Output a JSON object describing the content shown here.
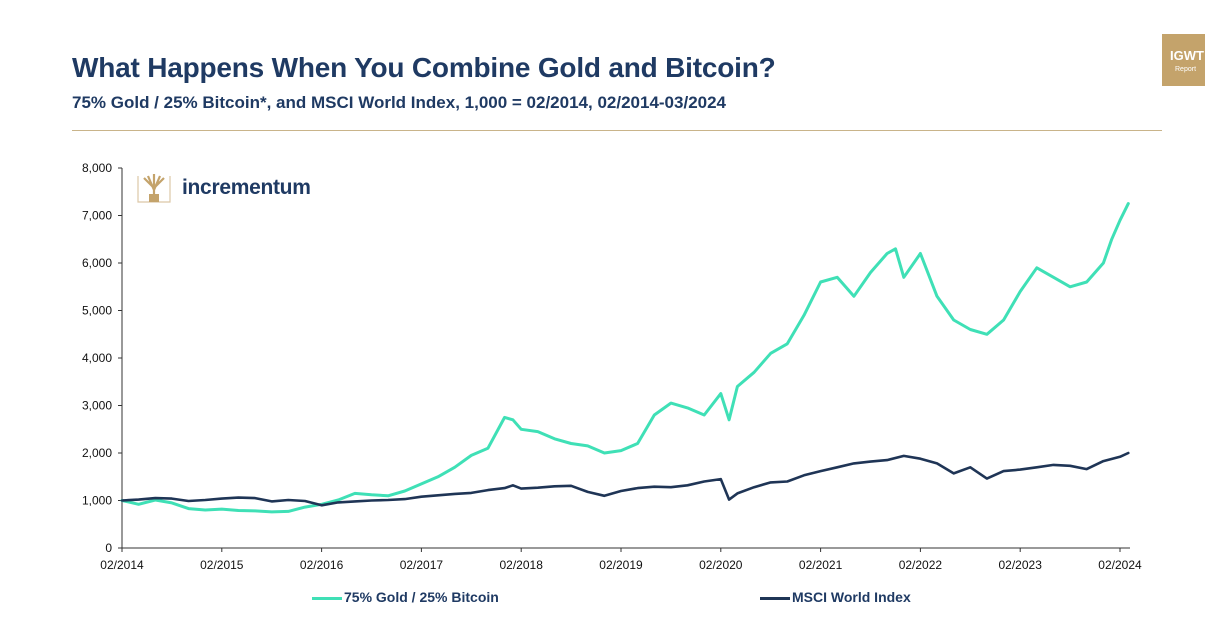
{
  "header": {
    "title": "What Happens When You Combine Gold and Bitcoin?",
    "subtitle": "75% Gold / 25% Bitcoin*, and MSCI World Index, 1,000 = 02/2014, 02/2014-03/2024"
  },
  "badge": {
    "title": "IGWT",
    "subtitle": "Report"
  },
  "logo": {
    "text": "incrementum",
    "icon": "tree-logo-icon"
  },
  "colors": {
    "gold_bitcoin": "#3fe0b6",
    "msci": "#1f3556",
    "title": "#1f3a63",
    "accent": "#c4a36b"
  },
  "chart_data": {
    "type": "line",
    "title": "What Happens When You Combine Gold and Bitcoin?",
    "xlabel": "",
    "ylabel": "",
    "ylim": [
      0,
      8000
    ],
    "xlim": [
      "2014-02",
      "2024-03"
    ],
    "y_ticks": [
      "0",
      "1,000",
      "2,000",
      "3,000",
      "4,000",
      "5,000",
      "6,000",
      "7,000",
      "8,000"
    ],
    "x_ticks": [
      "02/2014",
      "02/2015",
      "02/2016",
      "02/2017",
      "02/2018",
      "02/2019",
      "02/2020",
      "02/2021",
      "02/2022",
      "02/2023",
      "02/2024"
    ],
    "grid": false,
    "legend_position": "bottom",
    "series": [
      {
        "name": "75% Gold / 25% Bitcoin",
        "color": "#3fe0b6",
        "x": [
          "2014-02",
          "2014-04",
          "2014-06",
          "2014-08",
          "2014-10",
          "2014-12",
          "2015-02",
          "2015-04",
          "2015-06",
          "2015-08",
          "2015-10",
          "2015-12",
          "2016-02",
          "2016-04",
          "2016-06",
          "2016-08",
          "2016-10",
          "2016-12",
          "2017-02",
          "2017-04",
          "2017-06",
          "2017-08",
          "2017-10",
          "2017-12",
          "2018-01",
          "2018-02",
          "2018-04",
          "2018-06",
          "2018-08",
          "2018-10",
          "2018-12",
          "2019-02",
          "2019-04",
          "2019-06",
          "2019-08",
          "2019-10",
          "2019-12",
          "2020-02",
          "2020-03",
          "2020-04",
          "2020-06",
          "2020-08",
          "2020-10",
          "2020-12",
          "2021-02",
          "2021-04",
          "2021-06",
          "2021-08",
          "2021-10",
          "2021-11",
          "2021-12",
          "2022-02",
          "2022-04",
          "2022-06",
          "2022-08",
          "2022-10",
          "2022-12",
          "2023-02",
          "2023-04",
          "2023-06",
          "2023-08",
          "2023-10",
          "2023-12",
          "2024-01",
          "2024-02",
          "2024-03"
        ],
        "values": [
          1000,
          920,
          1010,
          950,
          830,
          800,
          820,
          790,
          780,
          760,
          770,
          860,
          920,
          1010,
          1150,
          1120,
          1100,
          1200,
          1350,
          1500,
          1700,
          1950,
          2100,
          2750,
          2700,
          2500,
          2450,
          2300,
          2200,
          2150,
          2000,
          2050,
          2200,
          2800,
          3050,
          2950,
          2800,
          3250,
          2700,
          3400,
          3700,
          4100,
          4300,
          4900,
          5600,
          5700,
          5300,
          5800,
          6200,
          6300,
          5700,
          6200,
          5300,
          4800,
          4600,
          4500,
          4800,
          5400,
          5900,
          5700,
          5500,
          5600,
          6000,
          6500,
          6900,
          7250
        ]
      },
      {
        "name": "MSCI World Index",
        "color": "#1f3556",
        "x": [
          "2014-02",
          "2014-04",
          "2014-06",
          "2014-08",
          "2014-10",
          "2014-12",
          "2015-02",
          "2015-04",
          "2015-06",
          "2015-08",
          "2015-10",
          "2015-12",
          "2016-02",
          "2016-04",
          "2016-06",
          "2016-08",
          "2016-10",
          "2016-12",
          "2017-02",
          "2017-04",
          "2017-06",
          "2017-08",
          "2017-10",
          "2017-12",
          "2018-01",
          "2018-02",
          "2018-04",
          "2018-06",
          "2018-08",
          "2018-10",
          "2018-12",
          "2019-02",
          "2019-04",
          "2019-06",
          "2019-08",
          "2019-10",
          "2019-12",
          "2020-02",
          "2020-03",
          "2020-04",
          "2020-06",
          "2020-08",
          "2020-10",
          "2020-12",
          "2021-02",
          "2021-04",
          "2021-06",
          "2021-08",
          "2021-10",
          "2021-12",
          "2022-02",
          "2022-04",
          "2022-06",
          "2022-08",
          "2022-10",
          "2022-12",
          "2023-02",
          "2023-04",
          "2023-06",
          "2023-08",
          "2023-10",
          "2023-12",
          "2024-02",
          "2024-03"
        ],
        "values": [
          1000,
          1020,
          1050,
          1040,
          990,
          1010,
          1040,
          1060,
          1050,
          980,
          1010,
          990,
          900,
          960,
          980,
          1000,
          1010,
          1030,
          1080,
          1110,
          1140,
          1160,
          1220,
          1260,
          1320,
          1250,
          1270,
          1300,
          1310,
          1180,
          1100,
          1200,
          1260,
          1290,
          1280,
          1320,
          1400,
          1450,
          1020,
          1150,
          1280,
          1380,
          1400,
          1530,
          1620,
          1700,
          1780,
          1820,
          1850,
          1940,
          1880,
          1780,
          1570,
          1700,
          1460,
          1620,
          1650,
          1700,
          1750,
          1730,
          1660,
          1830,
          1920,
          2000
        ]
      }
    ]
  }
}
